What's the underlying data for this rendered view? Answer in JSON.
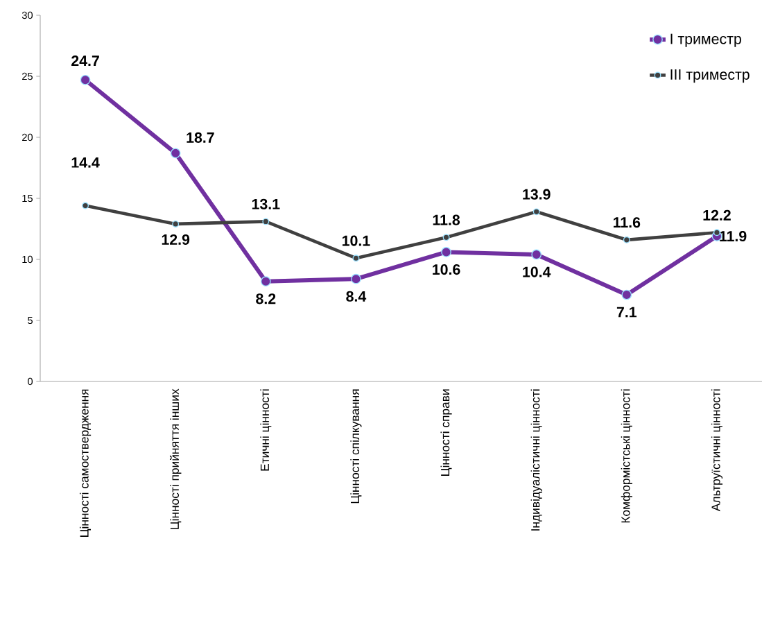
{
  "chart_data": {
    "type": "line",
    "categories": [
      "Цінності самоствердження",
      "Цінності прийняття інших",
      "Етичні цінності",
      "Цінності спілкування",
      "Цінності справи",
      "Індивідуалістичні цінності",
      "Комформістські цінності",
      "Альтруїстичні цінності"
    ],
    "series": [
      {
        "name": "I триместр",
        "color": "#7030a0",
        "values": [
          24.7,
          18.7,
          8.2,
          8.4,
          10.6,
          10.4,
          7.1,
          11.9
        ]
      },
      {
        "name": "III  триместр",
        "color": "#404040",
        "values": [
          14.4,
          12.9,
          13.1,
          10.1,
          11.8,
          13.9,
          11.6,
          12.2
        ]
      }
    ],
    "ylim": [
      0,
      30
    ],
    "yticks": [
      0,
      5,
      10,
      15,
      20,
      25,
      30
    ],
    "data_labels": true,
    "legend": "top right",
    "marker": "circle",
    "line_style": "solid"
  }
}
